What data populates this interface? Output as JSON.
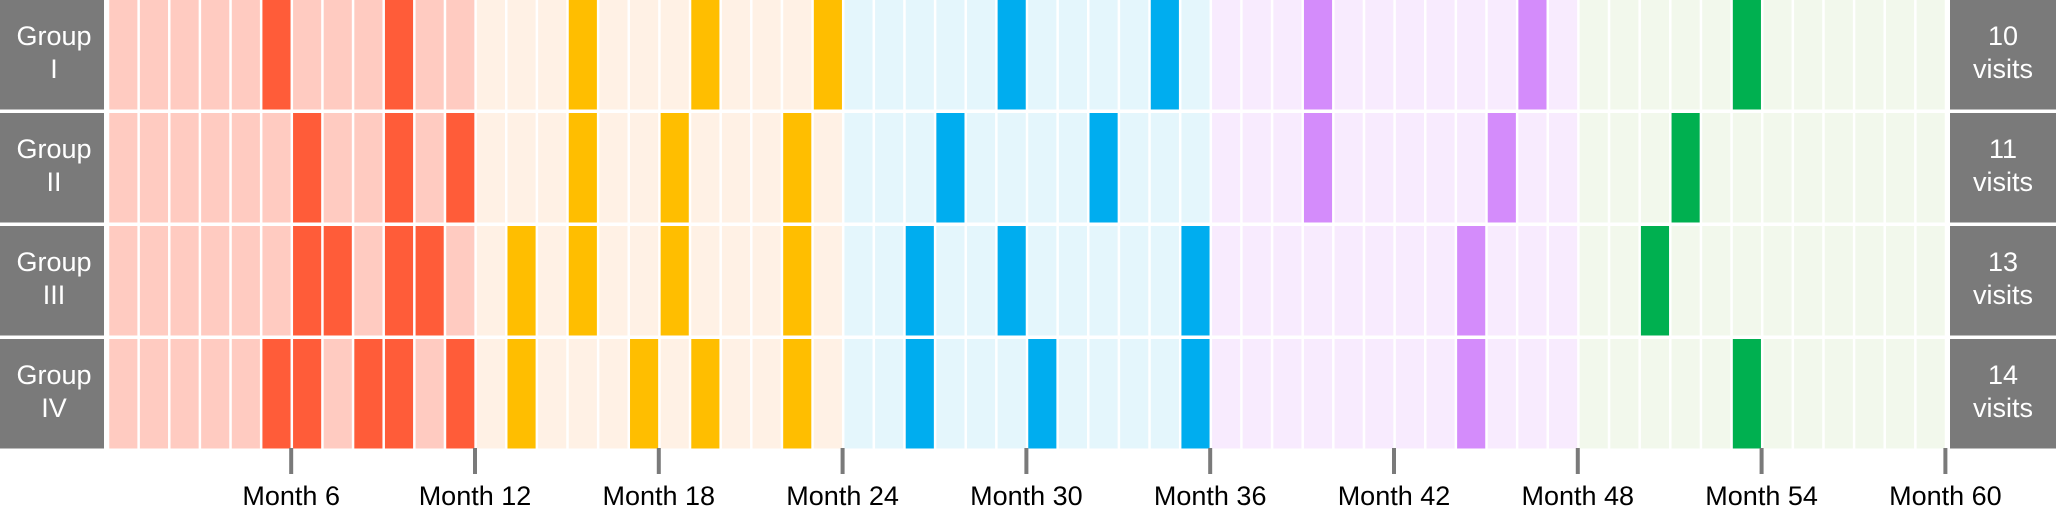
{
  "chart_data": {
    "type": "heatmap",
    "title": "",
    "xlabel": "",
    "ylabel": "",
    "x_range": [
      1,
      60
    ],
    "x_tick_labels": [
      "Month 6",
      "Month 12",
      "Month 18",
      "Month 24",
      "Month 30",
      "Month 36",
      "Month 42",
      "Month 48",
      "Month 54",
      "Month 60"
    ],
    "x_tick_values": [
      6,
      12,
      18,
      24,
      30,
      36,
      42,
      48,
      54,
      60
    ],
    "year_colors": [
      {
        "light": "#ffcbc1",
        "dark": "#ff5c39"
      },
      {
        "light": "#fff1e5",
        "dark": "#ffbe00"
      },
      {
        "light": "#e4f6fc",
        "dark": "#00adef"
      },
      {
        "light": "#f8ebfe",
        "dark": "#d48cfb"
      },
      {
        "light": "#f2f8ec",
        "dark": "#00b050"
      }
    ],
    "label_color": "#7a7a7a",
    "series": [
      {
        "name": "Group I",
        "name_lines": [
          "Group",
          "I"
        ],
        "summary_lines": [
          "10",
          "visits"
        ],
        "visit_months": [
          6,
          10,
          16,
          20,
          24,
          30,
          35,
          40,
          47,
          54
        ]
      },
      {
        "name": "Group II",
        "name_lines": [
          "Group",
          "II"
        ],
        "summary_lines": [
          "11",
          "visits"
        ],
        "visit_months": [
          7,
          10,
          12,
          16,
          19,
          23,
          28,
          33,
          40,
          46,
          52
        ]
      },
      {
        "name": "Group III",
        "name_lines": [
          "Group",
          "III"
        ],
        "summary_lines": [
          "13",
          "visits"
        ],
        "visit_months": [
          7,
          8,
          10,
          11,
          14,
          16,
          19,
          23,
          27,
          30,
          36,
          45,
          51
        ]
      },
      {
        "name": "Group IV",
        "name_lines": [
          "Group",
          "IV"
        ],
        "summary_lines": [
          "14",
          "visits"
        ],
        "visit_months": [
          6,
          7,
          9,
          10,
          12,
          14,
          18,
          20,
          23,
          27,
          31,
          36,
          45,
          54
        ]
      }
    ]
  }
}
